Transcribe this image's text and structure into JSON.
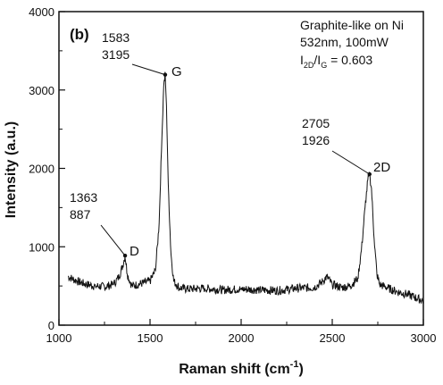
{
  "chart_data": {
    "type": "line",
    "panel_label": "(b)",
    "xlabel_main": "Raman shift (cm",
    "xlabel_sup": "-1",
    "xlabel_end": ")",
    "ylabel": "Intensity (a.u.)",
    "xlim": [
      1000,
      3000
    ],
    "ylim": [
      0,
      4000
    ],
    "x_ticks": [
      "1000",
      "1500",
      "2000",
      "2500",
      "3000"
    ],
    "y_ticks": [
      "0",
      "1000",
      "2000",
      "3000",
      "4000"
    ],
    "info": {
      "line1": "Graphite-like on Ni",
      "line2": "532nm, 100mW",
      "ratio_I": "I",
      "ratio_sub1": "2D",
      "ratio_slash": "/I",
      "ratio_sub2": "G",
      "ratio_value": " = 0.603"
    },
    "peaks": [
      {
        "name": "D",
        "x": "1363",
        "y": "887"
      },
      {
        "name": "G",
        "x": "1583",
        "y": "3195"
      },
      {
        "name": "2D",
        "x": "2705",
        "y": "1926"
      }
    ],
    "series": [
      {
        "x": [
          1050,
          1100,
          1150,
          1200,
          1250,
          1300,
          1330,
          1350,
          1363,
          1375,
          1400,
          1450,
          1500,
          1530,
          1550,
          1565,
          1575,
          1583,
          1590,
          1600,
          1615,
          1630,
          1660,
          1700,
          1800,
          1900,
          2000,
          2100,
          2200,
          2300,
          2400,
          2450,
          2470,
          2500,
          2550,
          2600,
          2640,
          2660,
          2680,
          2695,
          2705,
          2715,
          2730,
          2745,
          2760,
          2800,
          2850,
          2900,
          2950,
          3000
        ],
        "y": [
          620,
          560,
          520,
          500,
          490,
          520,
          620,
          760,
          887,
          650,
          500,
          530,
          560,
          700,
          1300,
          2400,
          3050,
          3195,
          2800,
          1800,
          900,
          560,
          480,
          460,
          470,
          450,
          460,
          450,
          440,
          470,
          480,
          560,
          620,
          520,
          480,
          500,
          600,
          950,
          1500,
          1850,
          1926,
          1750,
          1100,
          650,
          520,
          480,
          430,
          400,
          360,
          310
        ]
      }
    ]
  }
}
